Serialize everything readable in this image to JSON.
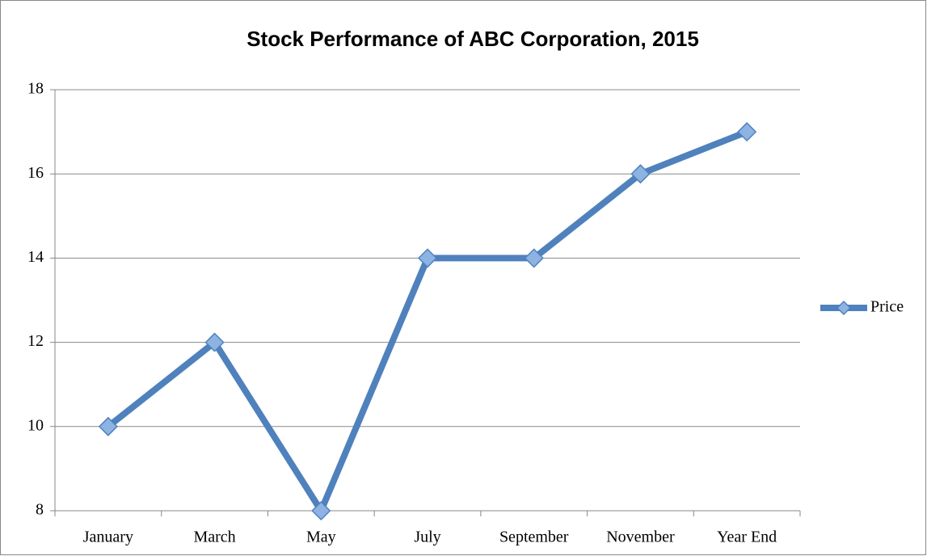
{
  "chart_data": {
    "type": "line",
    "title": "Stock Performance of ABC Corporation, 2015",
    "categories": [
      "January",
      "March",
      "May",
      "July",
      "September",
      "November",
      "Year End"
    ],
    "series": [
      {
        "name": "Price",
        "color": "#4f81bd",
        "values": [
          10,
          12,
          8,
          14,
          14,
          16,
          17
        ]
      }
    ],
    "ylim": [
      8,
      18
    ],
    "yticks": [
      8,
      10,
      12,
      14,
      16,
      18
    ],
    "grid": true,
    "legend": "right"
  }
}
